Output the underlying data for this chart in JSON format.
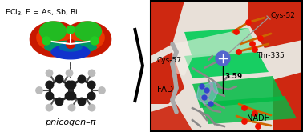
{
  "title_text": "ECl₃, E = As, Sb, Bi",
  "label_bottom": "pnicogen–π",
  "right_labels": {
    "cys52": "Cys-52",
    "cys57": "Cys-57",
    "thr335": "Thr-335",
    "fad": "FAD",
    "nadh": "NADH",
    "dist": "3.59"
  },
  "bg_color": "#ffffff",
  "figsize": [
    3.78,
    1.65
  ],
  "dpi": 100
}
